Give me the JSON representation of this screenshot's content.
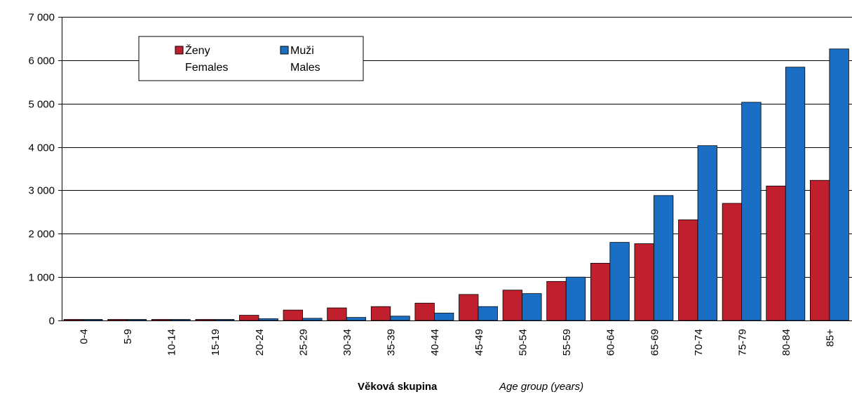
{
  "chart_data": {
    "type": "bar",
    "categories": [
      "0-4",
      "5-9",
      "10-14",
      "15-19",
      "20-24",
      "25-29",
      "30-34",
      "35-39",
      "40-44",
      "45-49",
      "50-54",
      "55-59",
      "60-64",
      "65-69",
      "70-74",
      "75-79",
      "80-84",
      "85+"
    ],
    "series": [
      {
        "name": "Ženy Females",
        "name_line1": "Ženy",
        "name_line2": "Females",
        "color": "#c0202d",
        "values": [
          15,
          5,
          5,
          10,
          120,
          240,
          290,
          320,
          400,
          600,
          700,
          900,
          1320,
          1770,
          2320,
          2700,
          3100,
          3230
        ]
      },
      {
        "name": "Muži Males",
        "name_line1": "Muži",
        "name_line2": "Males",
        "color": "#1a6fc4",
        "values": [
          10,
          5,
          5,
          10,
          40,
          50,
          70,
          100,
          170,
          320,
          620,
          1000,
          1800,
          2880,
          4030,
          5030,
          5840,
          6260
        ]
      }
    ],
    "ylim": [
      0,
      7000
    ],
    "yticks": [
      0,
      1000,
      2000,
      3000,
      4000,
      5000,
      6000,
      7000
    ],
    "ytick_labels": [
      "0",
      "1 000",
      "2 000",
      "3 000",
      "4 000",
      "5 000",
      "6 000",
      "7 000"
    ],
    "xlabel_bold": "Věková skupina",
    "xlabel_italic": "Age group  (years)",
    "grid": true,
    "legend_position": "top-left"
  }
}
